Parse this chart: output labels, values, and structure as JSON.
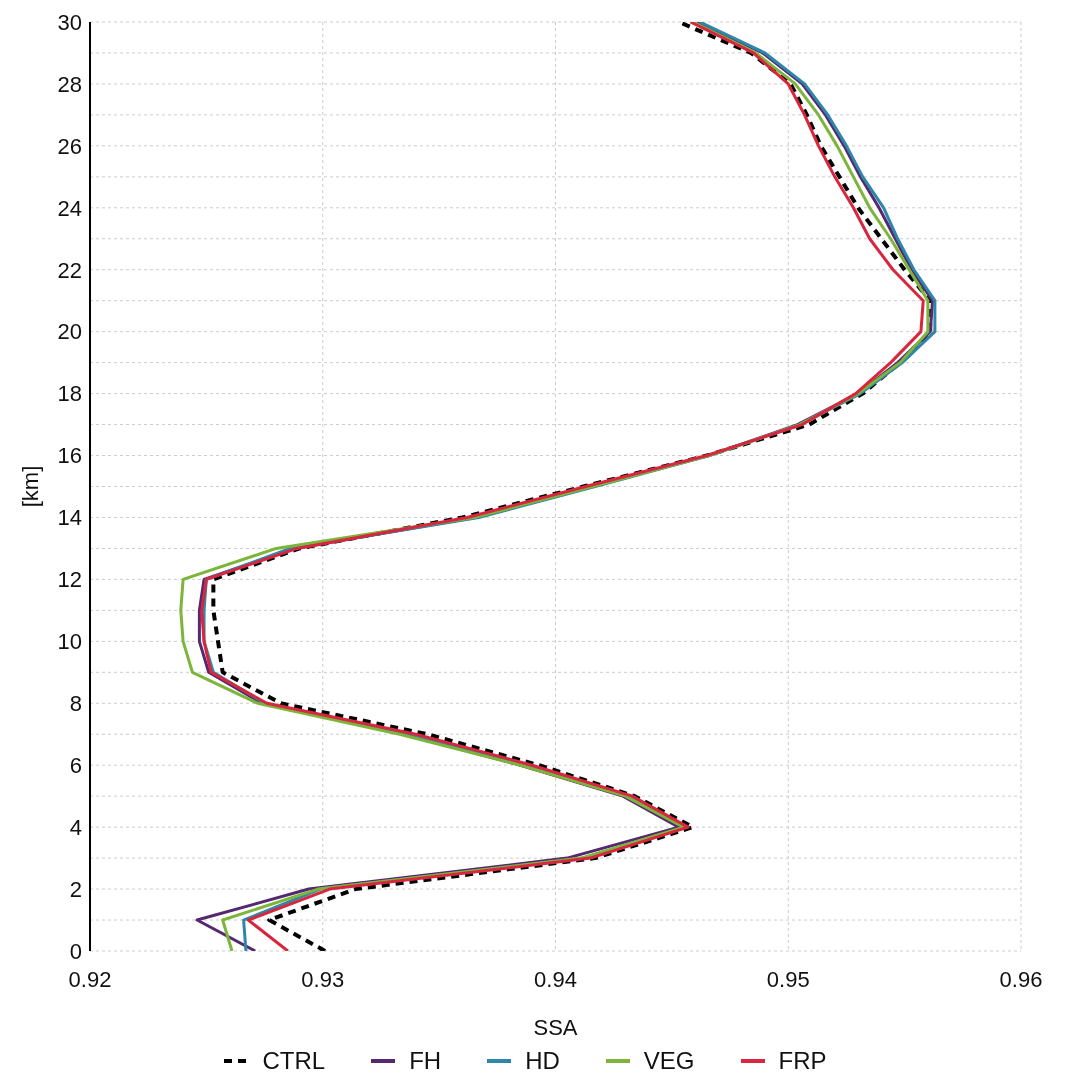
{
  "chart_data": {
    "type": "line",
    "xlabel": "SSA",
    "ylabel": "[km]",
    "xlim": [
      0.92,
      0.96
    ],
    "xticks": [
      0.92,
      0.93,
      0.94,
      0.95,
      0.96
    ],
    "ylim": [
      0,
      30
    ],
    "yticks": [
      0,
      {
        "value": 1,
        "label": null
      },
      2,
      {
        "value": 3,
        "label": null
      },
      4,
      {
        "value": 5,
        "label": null
      },
      6,
      {
        "value": 7,
        "label": null
      },
      8,
      {
        "value": 9,
        "label": null
      },
      10,
      {
        "value": 11,
        "label": null
      },
      12,
      {
        "value": 13,
        "label": null
      },
      14,
      {
        "value": 15,
        "label": null
      },
      16,
      {
        "value": 17,
        "label": null
      },
      18,
      {
        "value": 19,
        "label": null
      },
      20,
      {
        "value": 21,
        "label": null
      },
      22,
      {
        "value": 23,
        "label": null
      },
      24,
      {
        "value": 25,
        "label": null
      },
      26,
      {
        "value": 27,
        "label": null
      },
      28,
      {
        "value": 29,
        "label": null
      },
      30
    ],
    "grid": true,
    "legend": "bottom",
    "marker": "none",
    "series": [
      {
        "name": "CTRL",
        "color": "#000000",
        "line_style": "dashed",
        "x": [
          0.9301,
          0.9277,
          0.9314,
          0.9417,
          0.9459,
          0.9434,
          0.9393,
          0.9345,
          0.9282,
          0.9257,
          0.9255,
          0.9253,
          0.9253,
          0.929,
          0.936,
          0.9412,
          0.9465,
          0.9509,
          0.9532,
          0.9548,
          0.9561,
          0.9561,
          0.955,
          0.954,
          0.953,
          0.9522,
          0.9514,
          0.9508,
          0.9501,
          0.9484,
          0.9453
        ],
        "values": [
          0,
          1,
          2,
          3,
          4,
          5,
          6,
          7,
          8,
          9,
          10,
          11,
          12,
          13,
          14,
          15,
          16,
          17,
          18,
          19,
          20,
          21,
          22,
          23,
          24,
          25,
          26,
          27,
          28,
          29,
          30
        ]
      },
      {
        "name": "FH",
        "color": "#55286f",
        "x": [
          0.9271,
          0.9246,
          0.9294,
          0.9405,
          0.9453,
          0.9429,
          0.9385,
          0.9335,
          0.9274,
          0.9251,
          0.9247,
          0.9247,
          0.9249,
          0.9288,
          0.9365,
          0.9415,
          0.9466,
          0.9504,
          0.953,
          0.9547,
          0.9561,
          0.9562,
          0.9553,
          0.9546,
          0.9539,
          0.9531,
          0.9524,
          0.9516,
          0.9506,
          0.9489,
          0.9461
        ],
        "values": [
          0,
          1,
          2,
          3,
          4,
          5,
          6,
          7,
          8,
          9,
          10,
          11,
          12,
          13,
          14,
          15,
          16,
          17,
          18,
          19,
          20,
          21,
          22,
          23,
          24,
          25,
          26,
          27,
          28,
          29,
          30
        ]
      },
      {
        "name": "HD",
        "color": "#2e86ab",
        "x": [
          0.9267,
          0.9266,
          0.9299,
          0.9412,
          0.9456,
          0.9431,
          0.9388,
          0.9338,
          0.9275,
          0.9253,
          0.9249,
          0.9249,
          0.925,
          0.9286,
          0.9367,
          0.9417,
          0.9466,
          0.9505,
          0.9531,
          0.9549,
          0.9563,
          0.9563,
          0.9554,
          0.9547,
          0.9541,
          0.9532,
          0.9525,
          0.9517,
          0.9507,
          0.949,
          0.9462
        ],
        "values": [
          0,
          1,
          2,
          3,
          4,
          5,
          6,
          7,
          8,
          9,
          10,
          11,
          12,
          13,
          14,
          15,
          16,
          17,
          18,
          19,
          20,
          21,
          22,
          23,
          24,
          25,
          26,
          27,
          28,
          29,
          30
        ]
      },
      {
        "name": "VEG",
        "color": "#7cb53a",
        "x": [
          0.9261,
          0.9257,
          0.9298,
          0.9411,
          0.9455,
          0.943,
          0.9385,
          0.9333,
          0.9272,
          0.9244,
          0.924,
          0.9239,
          0.924,
          0.928,
          0.9365,
          0.9416,
          0.9466,
          0.9505,
          0.953,
          0.9548,
          0.956,
          0.956,
          0.9552,
          0.9544,
          0.9535,
          0.9528,
          0.9521,
          0.9513,
          0.9503,
          0.9486,
          0.9459
        ],
        "values": [
          0,
          1,
          2,
          3,
          4,
          5,
          6,
          7,
          8,
          9,
          10,
          11,
          12,
          13,
          14,
          15,
          16,
          17,
          18,
          19,
          20,
          21,
          22,
          23,
          24,
          25,
          26,
          27,
          28,
          29,
          30
        ]
      },
      {
        "name": "FRP",
        "color": "#d7263d",
        "x": [
          0.9285,
          0.9268,
          0.9303,
          0.9415,
          0.9457,
          0.9433,
          0.939,
          0.934,
          0.9276,
          0.9252,
          0.9249,
          0.9248,
          0.925,
          0.9289,
          0.9362,
          0.9413,
          0.9465,
          0.9506,
          0.9529,
          0.9544,
          0.9557,
          0.9558,
          0.9545,
          0.9535,
          0.9528,
          0.952,
          0.9513,
          0.9507,
          0.95,
          0.9485,
          0.9458
        ],
        "values": [
          0,
          1,
          2,
          3,
          4,
          5,
          6,
          7,
          8,
          9,
          10,
          11,
          12,
          13,
          14,
          15,
          16,
          17,
          18,
          19,
          20,
          21,
          22,
          23,
          24,
          25,
          26,
          27,
          28,
          29,
          30
        ]
      }
    ]
  }
}
